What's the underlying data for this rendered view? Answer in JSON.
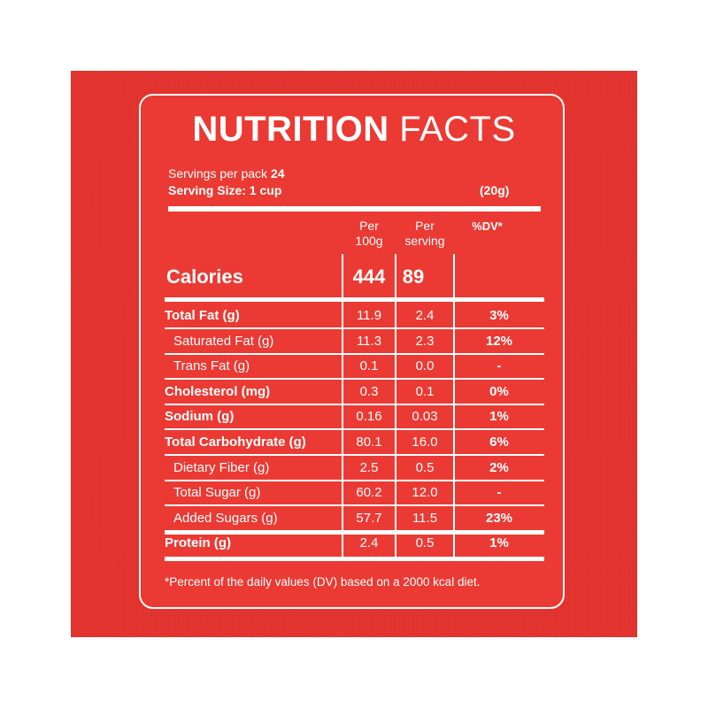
{
  "title": {
    "bold": "NUTRITION",
    "light": "FACTS"
  },
  "servings_per_pack_label": "Servings per pack",
  "servings_per_pack_value": "24",
  "serving_size": "Serving Size: 1 cup",
  "serving_weight": "(20g)",
  "columns": {
    "per100g_line1": "Per",
    "per100g_line2": "100g",
    "perserving_line1": "Per",
    "perserving_line2": "serving",
    "dv": "%DV*"
  },
  "calories": {
    "label": "Calories",
    "per100g": "444",
    "perserving": "89"
  },
  "rows": [
    {
      "label": "Total Fat (g)",
      "per100g": "11.9",
      "perserving": "2.4",
      "dv": "3%"
    },
    {
      "label": "Saturated Fat (g)",
      "per100g": "11.3",
      "perserving": "2.3",
      "dv": "12%"
    },
    {
      "label": "Trans Fat (g)",
      "per100g": "0.1",
      "perserving": "0.0",
      "dv": "-"
    },
    {
      "label": "Cholesterol (mg)",
      "per100g": "0.3",
      "perserving": "0.1",
      "dv": "0%"
    },
    {
      "label": "Sodium (g)",
      "per100g": "0.16",
      "perserving": "0.03",
      "dv": "1%"
    },
    {
      "label": "Total Carbohydrate (g)",
      "per100g": "80.1",
      "perserving": "16.0",
      "dv": "6%"
    },
    {
      "label": "Dietary Fiber (g)",
      "per100g": "2.5",
      "perserving": "0.5",
      "dv": "2%"
    },
    {
      "label": "Total Sugar (g)",
      "per100g": "60.2",
      "perserving": "12.0",
      "dv": "-"
    },
    {
      "label": "Added Sugars (g)",
      "per100g": "57.7",
      "perserving": "11.5",
      "dv": "23%"
    },
    {
      "label": "Protein (g)",
      "per100g": "2.4",
      "perserving": "0.5",
      "dv": "1%"
    }
  ],
  "footnote": "*Percent of the daily values (DV) based on a 2000 kcal diet.",
  "colors": {
    "background": "#e5332e",
    "text": "#ffffff"
  }
}
